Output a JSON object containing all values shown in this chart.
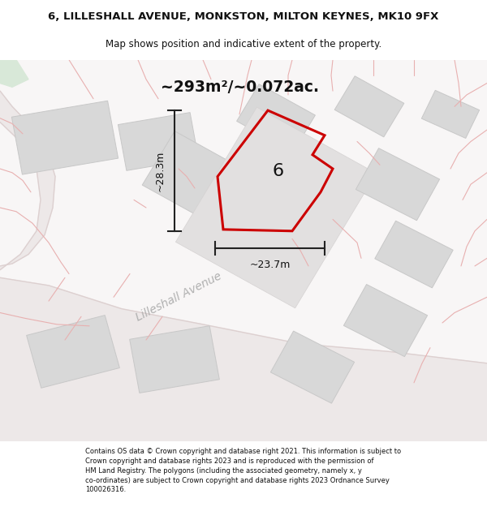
{
  "title_line1": "6, LILLESHALL AVENUE, MONKSTON, MILTON KEYNES, MK10 9FX",
  "title_line2": "Map shows position and indicative extent of the property.",
  "area_text": "~293m²/~0.072ac.",
  "width_label": "~23.7m",
  "height_label": "~28.3m",
  "street_label": "Lilleshall Avenue",
  "plot_number": "6",
  "footer_text": "Contains OS data © Crown copyright and database right 2021. This information is subject to Crown copyright and database rights 2023 and is reproduced with the permission of HM Land Registry. The polygons (including the associated geometry, namely x, y co-ordinates) are subject to Crown copyright and database rights 2023 Ordnance Survey 100026316.",
  "bg_color": "#f7f4f4",
  "plot_outline_color": "#cc0000",
  "building_color": "#d8d8d8",
  "building_edge_color": "#c8c8c8",
  "dim_line_color": "#222222",
  "title_color": "#111111",
  "footer_color": "#111111",
  "street_label_color": "#aaaaaa",
  "pink_line_color": "#e8b0b0",
  "road_fill": "#ede8e8",
  "white_area": "#f8f6f6"
}
